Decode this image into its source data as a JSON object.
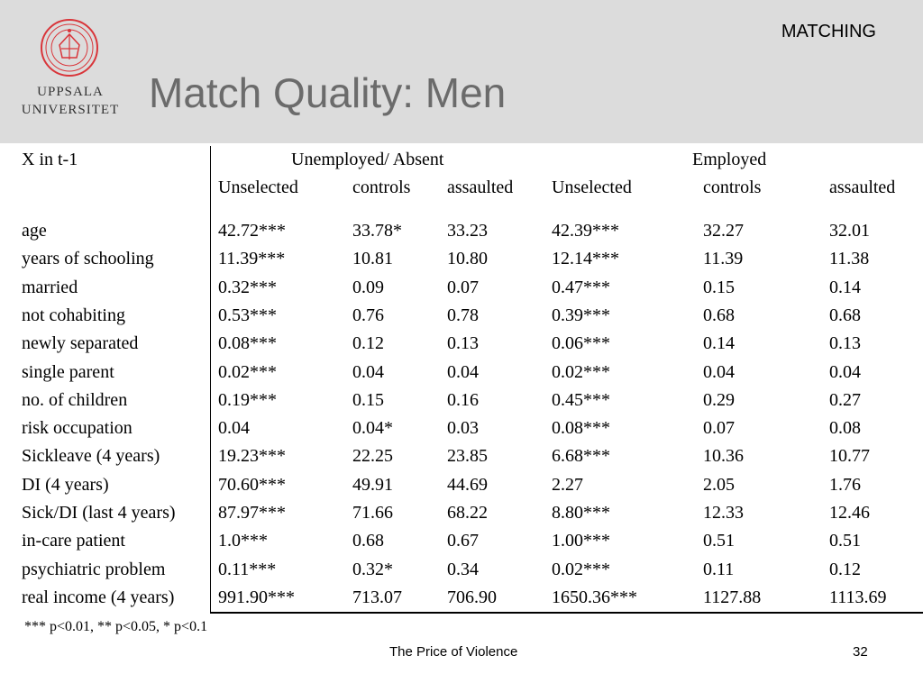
{
  "header": {
    "section": "MATCHING",
    "title": "Match Quality: Men",
    "logo_lines": [
      "UPPSALA",
      "UNIVERSITET"
    ],
    "logo_color": "#d9353a"
  },
  "table": {
    "corner_label": "X in t-1",
    "groups": [
      "Unemployed/ Absent",
      "Employed"
    ],
    "subheaders": [
      "Unselected",
      "controls",
      "assaulted",
      "Unselected",
      "controls",
      "assaulted"
    ],
    "rows": [
      {
        "label": "age",
        "values": [
          "42.72***",
          "33.78*",
          "33.23",
          "42.39***",
          "32.27",
          "32.01"
        ]
      },
      {
        "label": "years of schooling",
        "values": [
          "11.39***",
          "10.81",
          "10.80",
          "12.14***",
          "11.39",
          "11.38"
        ]
      },
      {
        "label": "married",
        "values": [
          "0.32***",
          "0.09",
          "0.07",
          "0.47***",
          "0.15",
          "0.14"
        ]
      },
      {
        "label": "not cohabiting",
        "values": [
          "0.53***",
          "0.76",
          "0.78",
          "0.39***",
          "0.68",
          "0.68"
        ]
      },
      {
        "label": "newly separated",
        "values": [
          "0.08***",
          "0.12",
          "0.13",
          "0.06***",
          "0.14",
          "0.13"
        ]
      },
      {
        "label": "single parent",
        "values": [
          "0.02***",
          "0.04",
          "0.04",
          "0.02***",
          "0.04",
          "0.04"
        ]
      },
      {
        "label": "no. of children",
        "values": [
          "0.19***",
          "0.15",
          "0.16",
          "0.45***",
          "0.29",
          "0.27"
        ]
      },
      {
        "label": "risk occupation",
        "values": [
          "0.04",
          "0.04*",
          "0.03",
          "0.08***",
          "0.07",
          "0.08"
        ]
      },
      {
        "label": "Sickleave (4 years)",
        "values": [
          "19.23***",
          "22.25",
          "23.85",
          "6.68***",
          "10.36",
          "10.77"
        ]
      },
      {
        "label": "DI (4 years)",
        "values": [
          "70.60***",
          "49.91",
          "44.69",
          "2.27",
          "2.05",
          "1.76"
        ]
      },
      {
        "label": "Sick/DI (last 4 years)",
        "values": [
          "87.97***",
          "71.66",
          "68.22",
          "8.80***",
          "12.33",
          "12.46"
        ]
      },
      {
        "label": "in-care patient",
        "values": [
          "1.0***",
          "0.68",
          "0.67",
          "1.00***",
          "0.51",
          "0.51"
        ]
      },
      {
        "label": "psychiatric problem",
        "values": [
          "0.11***",
          "0.32*",
          "0.34",
          "0.02***",
          "0.11",
          "0.12"
        ]
      },
      {
        "label": "real income (4 years)",
        "values": [
          "991.90***",
          "713.07",
          "706.90",
          "1650.36***",
          "1127.88",
          "1113.69"
        ]
      }
    ]
  },
  "footnote": "*** p<0.01, ** p<0.05, * p<0.1",
  "footer": {
    "title": "The Price of Violence",
    "page": "32"
  }
}
